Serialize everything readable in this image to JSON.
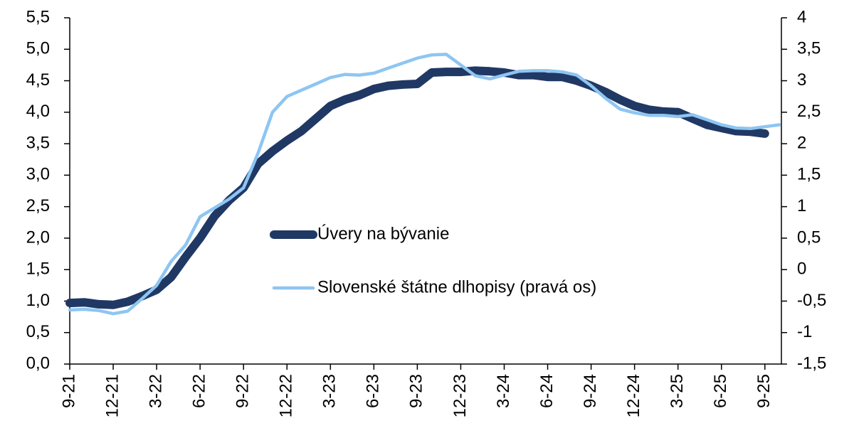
{
  "chart_data": {
    "type": "line",
    "categories": [
      "9-21",
      null,
      null,
      "12-21",
      null,
      null,
      "3-22",
      null,
      null,
      "6-22",
      null,
      null,
      "9-22",
      null,
      null,
      "12-22",
      null,
      null,
      "3-23",
      null,
      null,
      "6-23",
      null,
      null,
      "9-23",
      null,
      null,
      "12-23",
      null,
      null,
      "3-24",
      null,
      null,
      "6-24",
      null,
      null,
      "9-24",
      null,
      null,
      "12-24",
      null,
      null,
      "3-25",
      null,
      null,
      "6-25",
      null,
      null,
      "9-25",
      null
    ],
    "series": [
      {
        "name": "Úvery na bývanie",
        "color": "#203864",
        "axis": "y",
        "values": [
          0.97,
          0.98,
          0.95,
          0.94,
          0.99,
          1.08,
          1.18,
          1.38,
          1.7,
          2.0,
          2.35,
          2.6,
          2.8,
          3.18,
          3.38,
          3.55,
          3.7,
          3.9,
          4.1,
          4.2,
          4.27,
          4.37,
          4.42,
          4.44,
          4.45,
          4.63,
          4.64,
          4.64,
          4.66,
          4.65,
          4.63,
          4.59,
          4.59,
          4.56,
          4.56,
          4.5,
          4.42,
          4.32,
          4.2,
          4.1,
          4.04,
          4.01,
          4.0,
          3.9,
          3.8,
          3.75,
          3.7,
          3.69,
          3.66,
          null
        ]
      },
      {
        "name": "Slovenské štátne dlhopisy (pravá os)",
        "color": "#8ec5f2",
        "axis": "y2",
        "values": [
          -0.64,
          -0.63,
          -0.65,
          -0.7,
          -0.66,
          -0.46,
          -0.25,
          0.13,
          0.39,
          0.84,
          0.98,
          1.12,
          1.3,
          1.85,
          2.5,
          2.75,
          2.85,
          2.95,
          3.05,
          3.1,
          3.09,
          3.12,
          3.2,
          3.28,
          3.36,
          3.41,
          3.42,
          3.25,
          3.08,
          3.03,
          3.09,
          3.15,
          3.16,
          3.16,
          3.14,
          3.09,
          2.92,
          2.72,
          2.55,
          2.49,
          2.45,
          2.45,
          2.43,
          2.46,
          2.38,
          2.3,
          2.25,
          2.24,
          2.27,
          2.3
        ]
      }
    ],
    "ylim": [
      0,
      5.5
    ],
    "yticks": [
      {
        "value": 0,
        "label": "0,0"
      },
      {
        "value": 0.5,
        "label": "0,5"
      },
      {
        "value": 1,
        "label": "1,0"
      },
      {
        "value": 1.5,
        "label": "1,5"
      },
      {
        "value": 2,
        "label": "2,0"
      },
      {
        "value": 2.5,
        "label": "2,5"
      },
      {
        "value": 3,
        "label": "3,0"
      },
      {
        "value": 3.5,
        "label": "3,5"
      },
      {
        "value": 4,
        "label": "4,0"
      },
      {
        "value": 4.5,
        "label": "4,5"
      },
      {
        "value": 5,
        "label": "5,0"
      },
      {
        "value": 5.5,
        "label": "5,5"
      }
    ],
    "y2lim": [
      -1.5,
      4
    ],
    "y2ticks": [
      {
        "value": -1.5,
        "label": "-1,5"
      },
      -1,
      {
        "value": -0.5,
        "label": "-0,5"
      },
      0,
      {
        "value": 0.5,
        "label": "0,5"
      },
      1,
      {
        "value": 1.5,
        "label": "1,5"
      },
      2,
      {
        "value": 2.5,
        "label": "2,5"
      },
      3,
      {
        "value": 3.5,
        "label": "3,5"
      },
      4
    ]
  }
}
